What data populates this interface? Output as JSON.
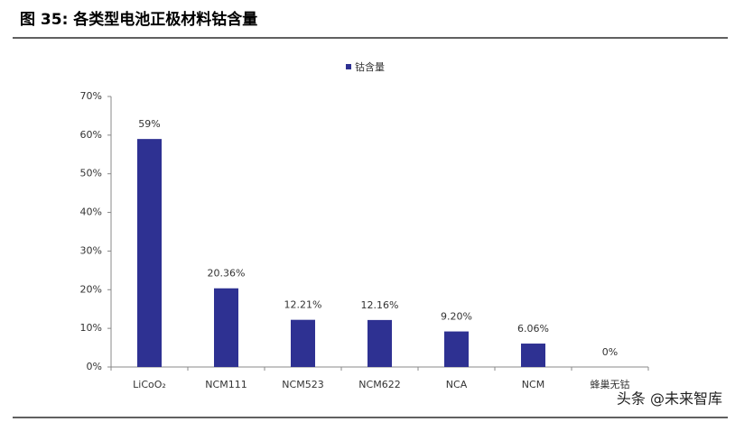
{
  "chart_data": {
    "type": "bar",
    "title": "图 35:  各类型电池正极材料钴含量",
    "watermark": "头条 @未来智库",
    "categories": [
      "LiCoO₂",
      "NCM111",
      "NCM523",
      "NCM622",
      "NCA",
      "NCM",
      "蜂巢无钴"
    ],
    "series": [
      {
        "name": "钴含量",
        "color": "#2e3192",
        "values": [
          59,
          20.36,
          12.21,
          12.16,
          9.2,
          6.06,
          0
        ],
        "value_labels": [
          "59%",
          "20.36%",
          "12.21%",
          "12.16%",
          "9.20%",
          "6.06%",
          "0%"
        ]
      }
    ],
    "ylim": [
      0,
      70
    ],
    "yticks": [
      {
        "value": 0,
        "label": "0%"
      },
      {
        "value": 10,
        "label": "10%"
      },
      {
        "value": 20,
        "label": "20%"
      },
      {
        "value": 30,
        "label": "30%"
      },
      {
        "value": 40,
        "label": "40%"
      },
      {
        "value": 50,
        "label": "50%"
      },
      {
        "value": 60,
        "label": "60%"
      },
      {
        "value": 70,
        "label": "70%"
      }
    ],
    "legend": "top",
    "grid": false
  }
}
